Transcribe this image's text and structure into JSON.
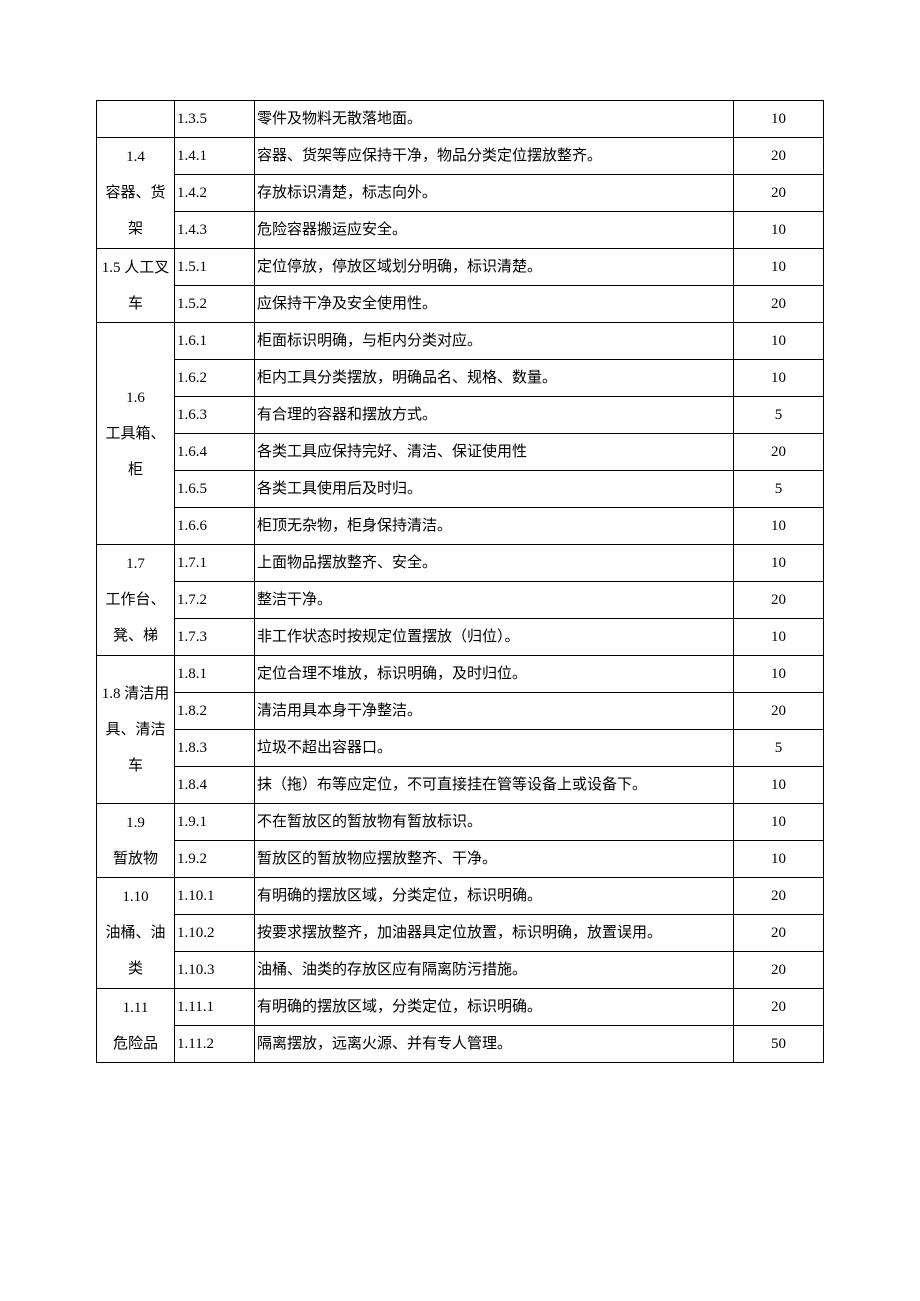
{
  "rows": [
    {
      "cat": "",
      "num": "1.3.5",
      "desc": "零件及物料无散落地面。",
      "score": "10"
    },
    {
      "cat": "1.4\n容器、货架",
      "catRowspan": 3,
      "num": "1.4.1",
      "desc": "容器、货架等应保持干净，物品分类定位摆放整齐。",
      "score": "20"
    },
    {
      "num": "1.4.2",
      "desc": "存放标识清楚，标志向外。",
      "score": "20"
    },
    {
      "num": "1.4.3",
      "desc": "危险容器搬运应安全。",
      "score": "10"
    },
    {
      "cat": "1.5 人工叉车",
      "catRowspan": 2,
      "num": "1.5.1",
      "desc": "定位停放，停放区域划分明确，标识清楚。",
      "score": "10"
    },
    {
      "num": "1.5.2",
      "desc": "应保持干净及安全使用性。",
      "score": "20",
      "tall": true
    },
    {
      "cat": "1.6\n工具箱、柜",
      "catRowspan": 6,
      "num": "1.6.1",
      "desc": "柜面标识明确，与柜内分类对应。",
      "score": "10"
    },
    {
      "num": "1.6.2",
      "desc": "柜内工具分类摆放，明确品名、规格、数量。",
      "score": "10"
    },
    {
      "num": "1.6.3",
      "desc": "有合理的容器和摆放方式。",
      "score": "5"
    },
    {
      "num": "1.6.4",
      "desc": "各类工具应保持完好、清洁、保证使用性",
      "score": "20"
    },
    {
      "num": "1.6.5",
      "desc": "各类工具使用后及时归。",
      "score": "5"
    },
    {
      "num": "1.6.6",
      "desc": "柜顶无杂物，柜身保持清洁。",
      "score": "10"
    },
    {
      "cat": "1.7\n工作台、凳、梯",
      "catRowspan": 3,
      "num": "1.7.1",
      "desc": "上面物品摆放整齐、安全。",
      "score": "10"
    },
    {
      "num": "1.7.2",
      "desc": "整洁干净。",
      "score": "20"
    },
    {
      "num": "1.7.3",
      "desc": "非工作状态时按规定位置摆放（归位）。",
      "score": "10"
    },
    {
      "cat": "1.8 清洁用具、清洁车",
      "catRowspan": 4,
      "num": "1.8.1",
      "desc": "定位合理不堆放，标识明确，及时归位。",
      "score": "10"
    },
    {
      "num": "1.8.2",
      "desc": "清洁用具本身干净整洁。",
      "score": "20"
    },
    {
      "num": "1.8.3",
      "desc": "垃圾不超出容器口。",
      "score": "5"
    },
    {
      "num": "1.8.4",
      "desc": "抹（拖）布等应定位，不可直接挂在管等设备上或设备下。",
      "score": "10",
      "tall": true
    },
    {
      "cat": "1.9\n暂放物",
      "catRowspan": 2,
      "num": "1.9.1",
      "desc": "不在暂放区的暂放物有暂放标识。",
      "score": "10"
    },
    {
      "num": "1.9.2",
      "desc": "暂放区的暂放物应摆放整齐、干净。",
      "score": "10"
    },
    {
      "cat": "1.10\n油桶、油类",
      "catRowspan": 3,
      "num": "1.10.1",
      "desc": "有明确的摆放区域，分类定位，标识明确。",
      "score": "20"
    },
    {
      "num": "1.10.2",
      "desc": "按要求摆放整齐，加油器具定位放置，标识明确，放置误用。",
      "score": "20",
      "tall": true
    },
    {
      "num": "1.10.3",
      "desc": "油桶、油类的存放区应有隔离防污措施。",
      "score": "20"
    },
    {
      "cat": "1.11\n危险品",
      "catRowspan": 2,
      "num": "1.11.1",
      "desc": "有明确的摆放区域，分类定位，标识明确。",
      "score": "20"
    },
    {
      "num": "1.11.2",
      "desc": "隔离摆放，远离火源、并有专人管理。",
      "score": "50"
    }
  ]
}
